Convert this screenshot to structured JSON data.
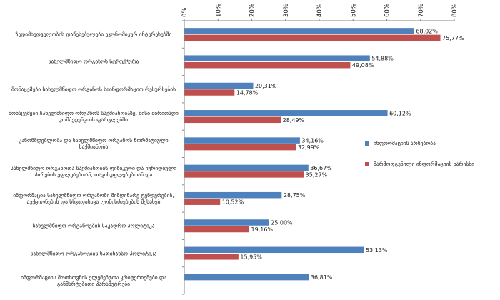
{
  "chart_data": {
    "type": "bar",
    "orientation": "horizontal",
    "axis_position": "top",
    "xlim": [
      0,
      80
    ],
    "ticks": [
      "0%",
      "10%",
      "20%",
      "30%",
      "40%",
      "50%",
      "60%",
      "70%",
      "80%"
    ],
    "grid": false,
    "legend_position": "right",
    "categories": [
      "ზედამხედველობის დაწესებულება ეკონომიკურ ინტერესებში",
      "სახელმწიფო ორგანოს სტრუქტურა",
      "მონაცემები სახელმწიფო ორგანოს საინფორმაციო რესურსების",
      "მონაცემები სახელმწიფო ორგანოს საქმიანობაზე, მისი ძირითადი კომპეტენციის ფარგლებში",
      "კანონმდებლობა და სახელმწიფო ორგანოს ნორმატიული საქმიანობა",
      "სახელმწიფო ორგანოთა საქმიანობის ფიზიკური და იურიდიული პირების უფლებებთან, თავისუფლებებთან და",
      "ინფორმაცია სახელმწიფო ორგანოში მიმდინარე ტენდერების, აუქციონების და სხვადასხვა ღონისძიებების შესახებ",
      "სახელმწიფო ორგანოების საკადრო პოლიტიკა",
      "სახელმწიფო ორგანოების საფინანსო პოლიტიკა",
      "ინფორმაციის მოთხოვნის ელემენტთა კრიტერიუმები და განმარტებითი პარამეტრები"
    ],
    "series": [
      {
        "name": "ინფორმაციის არსებობა",
        "color": "#4F81BD",
        "values": [
          68.02,
          54.88,
          20.31,
          60.12,
          34.16,
          36.67,
          28.75,
          25.0,
          53.13,
          36.81
        ],
        "labels": [
          "68,02%",
          "54,88%",
          "20,31%",
          "60,12%",
          "34,16%",
          "36,67%",
          "28,75%",
          "25,00%",
          "53,13%",
          "36,81%"
        ]
      },
      {
        "name": "წარმოდგენილი ინფორმაციის ხარისხი",
        "color": "#C0504D",
        "values": [
          75.77,
          49.08,
          14.78,
          28.49,
          32.99,
          35.27,
          10.52,
          19.16,
          15.95,
          null
        ],
        "labels": [
          "75,77%",
          "49,08%",
          "14,78%",
          "28,49%",
          "32,99%",
          "35,27%",
          "10,52%",
          "19,16%",
          "15,95%",
          ""
        ]
      }
    ]
  }
}
